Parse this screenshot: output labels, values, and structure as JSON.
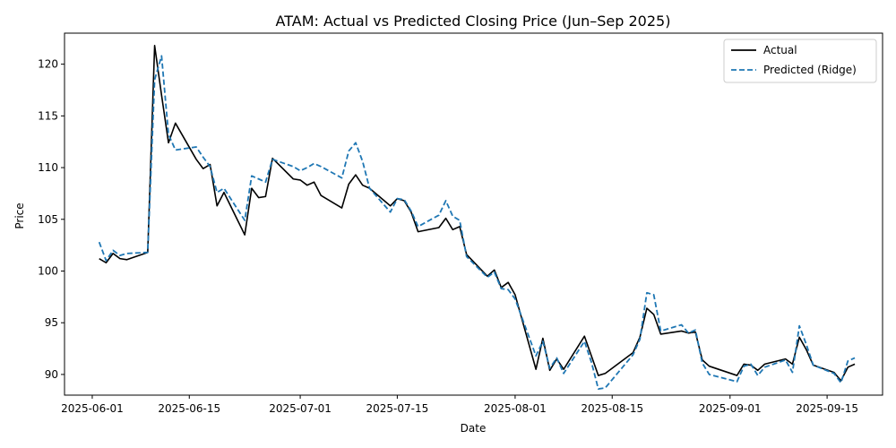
{
  "chart_data": {
    "type": "line",
    "title": "ATAM: Actual vs Predicted Closing Price (Jun–Sep 2025)",
    "xlabel": "Date",
    "ylabel": "Price",
    "xlim": [
      "2025-05-28",
      "2025-09-23"
    ],
    "ylim": [
      88.0,
      123.0
    ],
    "xticks": [
      "2025-06-01",
      "2025-06-15",
      "2025-07-01",
      "2025-07-15",
      "2025-08-01",
      "2025-08-15",
      "2025-09-01",
      "2025-09-15"
    ],
    "yticks": [
      90,
      95,
      100,
      105,
      110,
      115,
      120
    ],
    "grid": false,
    "legend": {
      "position": "top-right"
    },
    "series": [
      {
        "name": "Actual",
        "color": "#000000",
        "style": "solid",
        "points": [
          [
            "2025-06-02",
            101.2
          ],
          [
            "2025-06-03",
            100.8
          ],
          [
            "2025-06-04",
            101.7
          ],
          [
            "2025-06-05",
            101.2
          ],
          [
            "2025-06-06",
            101.1
          ],
          [
            "2025-06-09",
            101.8
          ],
          [
            "2025-06-10",
            121.8
          ],
          [
            "2025-06-11",
            117.0
          ],
          [
            "2025-06-12",
            112.4
          ],
          [
            "2025-06-13",
            114.3
          ],
          [
            "2025-06-16",
            110.8
          ],
          [
            "2025-06-17",
            109.9
          ],
          [
            "2025-06-18",
            110.3
          ],
          [
            "2025-06-19",
            106.3
          ],
          [
            "2025-06-20",
            107.6
          ],
          [
            "2025-06-23",
            103.5
          ],
          [
            "2025-06-24",
            108.0
          ],
          [
            "2025-06-25",
            107.1
          ],
          [
            "2025-06-26",
            107.2
          ],
          [
            "2025-06-27",
            110.9
          ],
          [
            "2025-06-30",
            108.9
          ],
          [
            "2025-07-01",
            108.8
          ],
          [
            "2025-07-02",
            108.3
          ],
          [
            "2025-07-03",
            108.6
          ],
          [
            "2025-07-04",
            107.3
          ],
          [
            "2025-07-07",
            106.1
          ],
          [
            "2025-07-08",
            108.4
          ],
          [
            "2025-07-09",
            109.3
          ],
          [
            "2025-07-10",
            108.3
          ],
          [
            "2025-07-11",
            108.0
          ],
          [
            "2025-07-14",
            106.3
          ],
          [
            "2025-07-15",
            107.0
          ],
          [
            "2025-07-16",
            106.8
          ],
          [
            "2025-07-17",
            105.7
          ],
          [
            "2025-07-18",
            103.8
          ],
          [
            "2025-07-21",
            104.2
          ],
          [
            "2025-07-22",
            105.1
          ],
          [
            "2025-07-23",
            104.0
          ],
          [
            "2025-07-24",
            104.3
          ],
          [
            "2025-07-25",
            101.6
          ],
          [
            "2025-07-28",
            99.5
          ],
          [
            "2025-07-29",
            100.1
          ],
          [
            "2025-07-30",
            98.4
          ],
          [
            "2025-07-31",
            98.9
          ],
          [
            "2025-08-01",
            97.7
          ],
          [
            "2025-08-04",
            90.5
          ],
          [
            "2025-08-05",
            93.5
          ],
          [
            "2025-08-06",
            90.4
          ],
          [
            "2025-08-07",
            91.5
          ],
          [
            "2025-08-08",
            90.5
          ],
          [
            "2025-08-11",
            93.7
          ],
          [
            "2025-08-12",
            91.8
          ],
          [
            "2025-08-13",
            89.9
          ],
          [
            "2025-08-14",
            90.1
          ],
          [
            "2025-08-18",
            92.1
          ],
          [
            "2025-08-19",
            93.6
          ],
          [
            "2025-08-20",
            96.4
          ],
          [
            "2025-08-21",
            95.8
          ],
          [
            "2025-08-22",
            93.9
          ],
          [
            "2025-08-25",
            94.2
          ],
          [
            "2025-08-26",
            94.0
          ],
          [
            "2025-08-27",
            94.1
          ],
          [
            "2025-08-28",
            91.4
          ],
          [
            "2025-08-29",
            90.8
          ],
          [
            "2025-09-02",
            89.9
          ],
          [
            "2025-09-03",
            91.0
          ],
          [
            "2025-09-04",
            90.9
          ],
          [
            "2025-09-05",
            90.4
          ],
          [
            "2025-09-06",
            91.0
          ],
          [
            "2025-09-09",
            91.5
          ],
          [
            "2025-09-10",
            91.0
          ],
          [
            "2025-09-11",
            93.6
          ],
          [
            "2025-09-12",
            92.4
          ],
          [
            "2025-09-13",
            90.9
          ],
          [
            "2025-09-16",
            90.2
          ],
          [
            "2025-09-17",
            89.4
          ],
          [
            "2025-09-18",
            90.7
          ],
          [
            "2025-09-19",
            91.0
          ]
        ]
      },
      {
        "name": "Predicted (Ridge)",
        "color": "#1f77b4",
        "style": "dashed",
        "points": [
          [
            "2025-06-02",
            102.8
          ],
          [
            "2025-06-03",
            101.0
          ],
          [
            "2025-06-04",
            102.0
          ],
          [
            "2025-06-05",
            101.5
          ],
          [
            "2025-06-06",
            101.7
          ],
          [
            "2025-06-09",
            101.8
          ],
          [
            "2025-06-10",
            118.5
          ],
          [
            "2025-06-11",
            120.8
          ],
          [
            "2025-06-12",
            113.2
          ],
          [
            "2025-06-13",
            111.7
          ],
          [
            "2025-06-16",
            112.0
          ],
          [
            "2025-06-17",
            111.0
          ],
          [
            "2025-06-18",
            110.1
          ],
          [
            "2025-06-19",
            107.6
          ],
          [
            "2025-06-20",
            108.0
          ],
          [
            "2025-06-23",
            104.9
          ],
          [
            "2025-06-24",
            109.2
          ],
          [
            "2025-06-25",
            108.9
          ],
          [
            "2025-06-26",
            108.6
          ],
          [
            "2025-06-27",
            110.8
          ],
          [
            "2025-06-30",
            110.1
          ],
          [
            "2025-07-01",
            109.7
          ],
          [
            "2025-07-02",
            110.0
          ],
          [
            "2025-07-03",
            110.4
          ],
          [
            "2025-07-04",
            110.1
          ],
          [
            "2025-07-07",
            109.0
          ],
          [
            "2025-07-08",
            111.6
          ],
          [
            "2025-07-09",
            112.4
          ],
          [
            "2025-07-10",
            110.6
          ],
          [
            "2025-07-11",
            108.0
          ],
          [
            "2025-07-14",
            105.7
          ],
          [
            "2025-07-15",
            107.0
          ],
          [
            "2025-07-16",
            106.9
          ],
          [
            "2025-07-17",
            105.8
          ],
          [
            "2025-07-18",
            104.3
          ],
          [
            "2025-07-21",
            105.4
          ],
          [
            "2025-07-22",
            106.8
          ],
          [
            "2025-07-23",
            105.3
          ],
          [
            "2025-07-24",
            104.9
          ],
          [
            "2025-07-25",
            101.4
          ],
          [
            "2025-07-28",
            99.4
          ],
          [
            "2025-07-29",
            99.9
          ],
          [
            "2025-07-30",
            98.3
          ],
          [
            "2025-07-31",
            98.2
          ],
          [
            "2025-08-01",
            97.3
          ],
          [
            "2025-08-04",
            91.8
          ],
          [
            "2025-08-05",
            93.2
          ],
          [
            "2025-08-06",
            90.6
          ],
          [
            "2025-08-07",
            91.6
          ],
          [
            "2025-08-08",
            90.1
          ],
          [
            "2025-08-11",
            93.2
          ],
          [
            "2025-08-12",
            91.2
          ],
          [
            "2025-08-13",
            88.6
          ],
          [
            "2025-08-14",
            88.7
          ],
          [
            "2025-08-18",
            91.9
          ],
          [
            "2025-08-19",
            93.4
          ],
          [
            "2025-08-20",
            97.9
          ],
          [
            "2025-08-21",
            97.7
          ],
          [
            "2025-08-22",
            94.2
          ],
          [
            "2025-08-25",
            94.8
          ],
          [
            "2025-08-26",
            94.0
          ],
          [
            "2025-08-27",
            94.3
          ],
          [
            "2025-08-28",
            91.1
          ],
          [
            "2025-08-29",
            90.0
          ],
          [
            "2025-09-02",
            89.3
          ],
          [
            "2025-09-03",
            90.8
          ],
          [
            "2025-09-04",
            91.0
          ],
          [
            "2025-09-05",
            89.9
          ],
          [
            "2025-09-06",
            90.7
          ],
          [
            "2025-09-09",
            91.4
          ],
          [
            "2025-09-10",
            90.2
          ],
          [
            "2025-09-11",
            94.7
          ],
          [
            "2025-09-12",
            92.9
          ],
          [
            "2025-09-13",
            90.9
          ],
          [
            "2025-09-16",
            90.1
          ],
          [
            "2025-09-17",
            89.2
          ],
          [
            "2025-09-18",
            91.3
          ],
          [
            "2025-09-19",
            91.6
          ]
        ]
      }
    ]
  }
}
